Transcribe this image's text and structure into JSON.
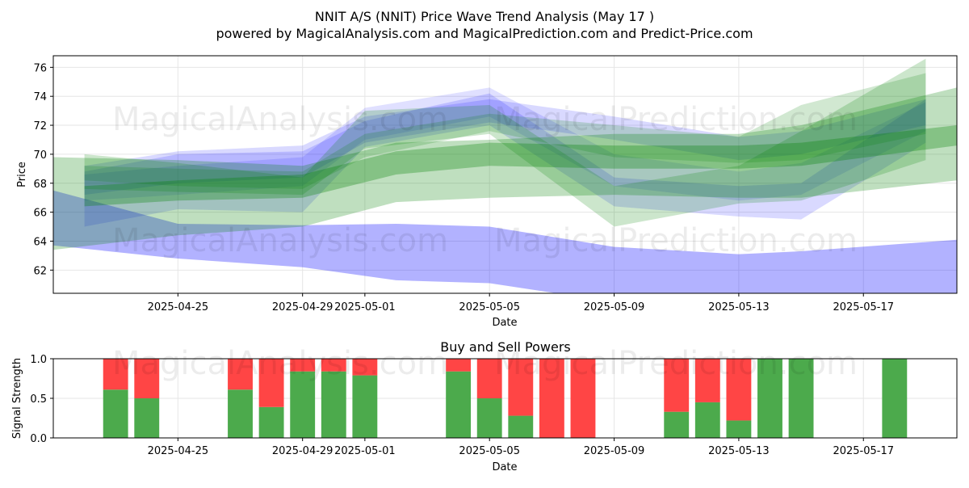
{
  "chart_data": [
    {
      "type": "area",
      "title": "NNIT A/S (NNIT) Price Wave Trend Analysis (May 17 )",
      "subtitle": "powered by MagicalAnalysis.com and MagicalPrediction.com and Predict-Price.com",
      "xlabel": "Date",
      "ylabel": "Price",
      "x_ticks": [
        "2025-04-25",
        "2025-04-29",
        "2025-05-01",
        "2025-05-05",
        "2025-05-09",
        "2025-05-13",
        "2025-05-17"
      ],
      "xlim": [
        "2025-04-21",
        "2025-05-20"
      ],
      "ylim": [
        60.4,
        76.8
      ],
      "y_ticks": [
        62,
        64,
        66,
        68,
        70,
        72,
        74,
        76
      ],
      "grid": true,
      "series": [
        {
          "color": "#0000ff",
          "opacity": 0.3,
          "x": [
            "2025-04-21",
            "2025-04-25",
            "2025-04-29",
            "2025-05-02",
            "2025-05-05",
            "2025-05-09",
            "2025-05-13",
            "2025-05-15",
            "2025-05-20"
          ],
          "y_low": [
            63.7,
            62.8,
            62.2,
            61.3,
            61.1,
            59.8,
            59.7,
            59.8,
            60.0
          ],
          "y_high": [
            67.5,
            65.2,
            65.1,
            65.2,
            65.0,
            63.6,
            63.1,
            63.3,
            64.1
          ]
        },
        {
          "color": "#0000ff",
          "opacity": 0.15,
          "x": [
            "2025-04-22",
            "2025-04-25",
            "2025-04-29",
            "2025-05-01",
            "2025-05-05",
            "2025-05-09",
            "2025-05-13",
            "2025-05-15",
            "2025-05-19"
          ],
          "y_low": [
            65.0,
            66.2,
            66.0,
            70.5,
            72.0,
            66.4,
            65.7,
            65.5,
            70.8
          ],
          "y_high": [
            68.8,
            70.0,
            70.2,
            72.3,
            74.2,
            68.4,
            67.8,
            68.0,
            73.8
          ]
        },
        {
          "color": "#0000ff",
          "opacity": 0.15,
          "x": [
            "2025-04-22",
            "2025-04-25",
            "2025-04-29",
            "2025-05-01",
            "2025-05-05",
            "2025-05-09",
            "2025-05-13",
            "2025-05-15",
            "2025-05-19"
          ],
          "y_low": [
            67.2,
            68.0,
            68.4,
            70.8,
            72.2,
            71.0,
            69.6,
            70.0,
            72.0
          ],
          "y_high": [
            69.2,
            70.2,
            70.6,
            72.6,
            73.8,
            72.6,
            71.2,
            71.6,
            73.8
          ]
        },
        {
          "color": "#0000ff",
          "opacity": 0.12,
          "x": [
            "2025-04-22",
            "2025-04-25",
            "2025-04-29",
            "2025-05-01",
            "2025-05-05",
            "2025-05-09",
            "2025-05-13",
            "2025-05-15",
            "2025-05-19"
          ],
          "y_low": [
            66.8,
            67.2,
            67.8,
            71.0,
            72.6,
            67.8,
            66.8,
            67.2,
            71.6
          ],
          "y_high": [
            68.6,
            69.2,
            69.8,
            73.2,
            74.6,
            70.0,
            68.8,
            69.4,
            73.6
          ]
        },
        {
          "color": "#008000",
          "opacity": 0.25,
          "x": [
            "2025-04-21",
            "2025-04-25",
            "2025-04-29",
            "2025-05-02",
            "2025-05-05",
            "2025-05-09",
            "2025-05-13",
            "2025-05-15",
            "2025-05-20"
          ],
          "y_low": [
            63.4,
            64.4,
            65.0,
            66.7,
            67.0,
            67.2,
            67.0,
            67.0,
            68.2
          ],
          "y_high": [
            69.8,
            69.6,
            69.2,
            70.8,
            71.0,
            71.4,
            71.4,
            72.0,
            74.6
          ]
        },
        {
          "color": "#008000",
          "opacity": 0.3,
          "x": [
            "2025-04-22",
            "2025-04-25",
            "2025-04-29",
            "2025-05-02",
            "2025-05-05",
            "2025-05-09",
            "2025-05-13",
            "2025-05-15",
            "2025-05-20"
          ],
          "y_low": [
            66.4,
            66.8,
            67.0,
            68.6,
            69.2,
            69.0,
            69.0,
            69.2,
            70.6
          ],
          "y_high": [
            67.8,
            68.2,
            68.6,
            70.2,
            70.8,
            70.6,
            70.6,
            70.8,
            72.0
          ]
        },
        {
          "color": "#008000",
          "opacity": 0.2,
          "x": [
            "2025-04-22",
            "2025-04-25",
            "2025-04-29",
            "2025-05-01",
            "2025-05-05",
            "2025-05-09",
            "2025-05-13",
            "2025-05-15",
            "2025-05-19"
          ],
          "y_low": [
            67.6,
            67.4,
            67.2,
            70.4,
            71.4,
            65.0,
            66.6,
            66.8,
            69.6
          ],
          "y_high": [
            70.0,
            69.4,
            68.4,
            73.0,
            73.4,
            67.8,
            69.2,
            71.6,
            76.6
          ]
        },
        {
          "color": "#008000",
          "opacity": 0.18,
          "x": [
            "2025-04-22",
            "2025-04-25",
            "2025-04-29",
            "2025-05-01",
            "2025-05-05",
            "2025-05-09",
            "2025-05-13",
            "2025-05-15",
            "2025-05-19"
          ],
          "y_low": [
            68.2,
            67.8,
            67.6,
            69.8,
            71.6,
            69.8,
            69.4,
            69.6,
            71.4
          ],
          "y_high": [
            69.2,
            69.0,
            68.8,
            71.4,
            72.8,
            72.0,
            71.2,
            73.4,
            75.6
          ]
        }
      ]
    },
    {
      "type": "bar",
      "title": "Buy and Sell Powers",
      "xlabel": "Date",
      "ylabel": "Signal Strength",
      "x_ticks": [
        "2025-04-25",
        "2025-04-29",
        "2025-05-01",
        "2025-05-05",
        "2025-05-09",
        "2025-05-13",
        "2025-05-17"
      ],
      "xlim": [
        "2025-04-21",
        "2025-05-20"
      ],
      "ylim": [
        0,
        1
      ],
      "y_ticks": [
        "0.0",
        "0.5",
        "1.0"
      ],
      "grid": true,
      "buy_color": "#4caa4c",
      "sell_color": "#ff4545",
      "dates": [
        "2025-04-23",
        "2025-04-24",
        "2025-04-27",
        "2025-04-28",
        "2025-04-29",
        "2025-04-30",
        "2025-05-01",
        "2025-05-04",
        "2025-05-05",
        "2025-05-06",
        "2025-05-07",
        "2025-05-08",
        "2025-05-11",
        "2025-05-12",
        "2025-05-13",
        "2025-05-14",
        "2025-05-15",
        "2025-05-18"
      ],
      "buy": [
        0.61,
        0.5,
        0.61,
        0.39,
        0.84,
        0.84,
        0.79,
        0.84,
        0.5,
        0.28,
        0.0,
        0.0,
        0.33,
        0.45,
        0.22,
        1.0,
        1.0,
        1.0
      ],
      "sell": [
        0.39,
        0.5,
        0.39,
        0.61,
        0.16,
        0.16,
        0.21,
        0.16,
        0.5,
        0.72,
        1.0,
        1.0,
        0.67,
        0.55,
        0.78,
        0.0,
        0.0,
        0.0
      ]
    }
  ],
  "watermarks": [
    "MagicalAnalysis.com",
    "MagicalPrediction.com"
  ]
}
